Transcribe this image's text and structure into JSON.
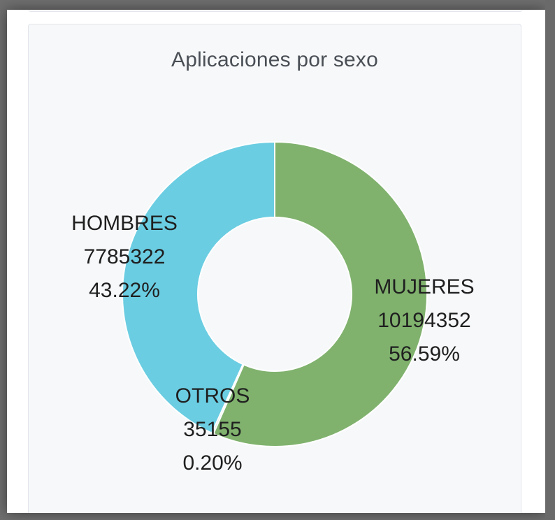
{
  "chart_data": {
    "type": "pie",
    "title": "Aplicaciones por sexo",
    "donut": true,
    "slices": [
      {
        "label": "MUJERES",
        "value": "10194352",
        "percent": "56.59%",
        "value_num": 10194352,
        "color": "#80b26e"
      },
      {
        "label": "OTROS",
        "value": "35155",
        "percent": "0.20%",
        "value_num": 35155,
        "color": "#c9d7c0"
      },
      {
        "label": "HOMBRES",
        "value": "7785322",
        "percent": "43.22%",
        "value_num": 7785322,
        "color": "#6bcde2"
      }
    ],
    "start_angle": "top",
    "direction": "clockwise"
  }
}
